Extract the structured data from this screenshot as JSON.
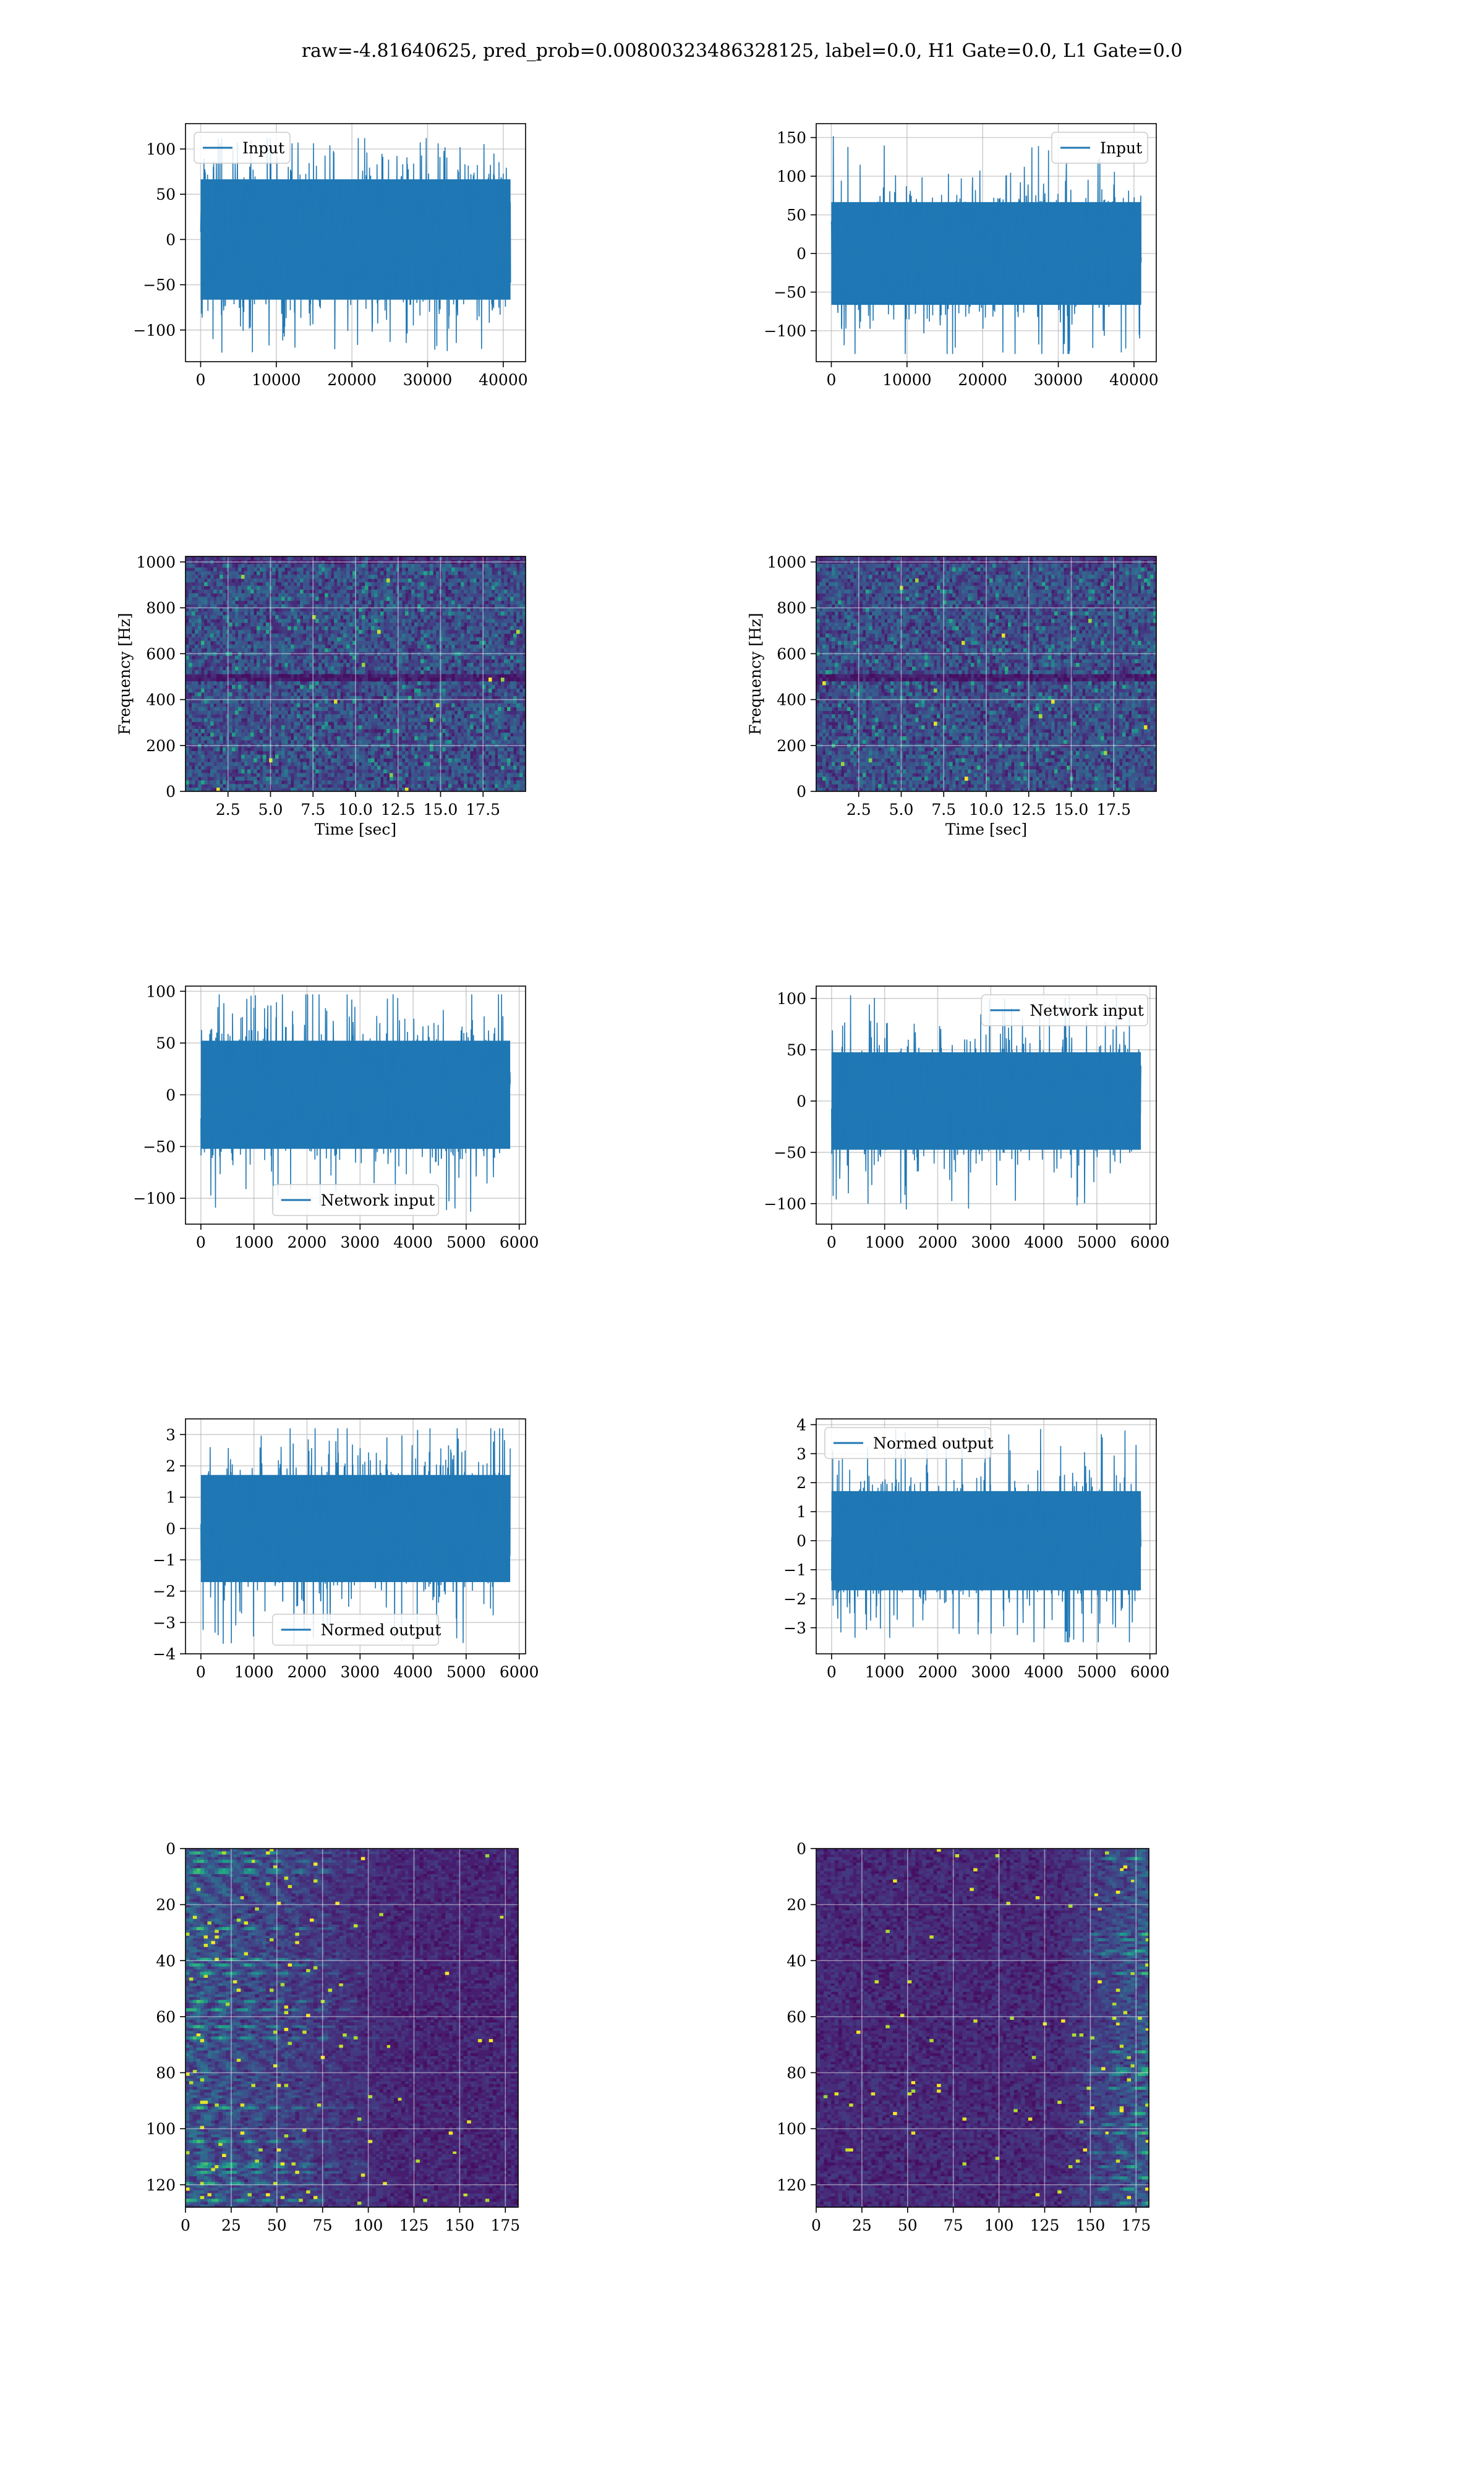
{
  "figure": {
    "title": "raw=-4.81640625, pred_prob=0.00800323486328125, label=0.0, H1 Gate=0.0, L1 Gate=0.0",
    "series_color": "#1f77b4"
  },
  "chart_data": [
    {
      "id": "r1c1",
      "type": "line",
      "title": "",
      "xlabel": "",
      "ylabel": "",
      "xlim": [
        -2000,
        42950
      ],
      "ylim": [
        -135,
        128
      ],
      "xticks": [
        0,
        10000,
        20000,
        30000,
        40000
      ],
      "xtick_labels": [
        "0",
        "10000",
        "20000",
        "30000",
        "40000"
      ],
      "yticks": [
        -100,
        -50,
        0,
        50,
        100
      ],
      "ytick_labels": [
        "−100",
        "−50",
        "0",
        "50",
        "100"
      ],
      "grid": true,
      "legend": {
        "entries": [
          "Input"
        ],
        "placement": "upper left"
      },
      "series": [
        {
          "name": "Input",
          "description": "dense noise-like strain time series",
          "n_points": 40960,
          "x_range": [
            0,
            40960
          ],
          "y_range": [
            -125,
            112
          ],
          "band_abs": 70
        }
      ]
    },
    {
      "id": "r1c2",
      "type": "line",
      "title": "",
      "xlabel": "",
      "ylabel": "",
      "xlim": [
        -2000,
        42950
      ],
      "ylim": [
        -140,
        168
      ],
      "xticks": [
        0,
        10000,
        20000,
        30000,
        40000
      ],
      "xtick_labels": [
        "0",
        "10000",
        "20000",
        "30000",
        "40000"
      ],
      "yticks": [
        -100,
        -50,
        0,
        50,
        100,
        150
      ],
      "ytick_labels": [
        "−100",
        "−50",
        "0",
        "50",
        "100",
        "150"
      ],
      "grid": true,
      "legend": {
        "entries": [
          "Input"
        ],
        "placement": "upper right"
      },
      "series": [
        {
          "name": "Input",
          "description": "dense noise-like strain time series",
          "n_points": 40960,
          "x_range": [
            0,
            40960
          ],
          "y_range": [
            -130,
            152
          ],
          "band_abs": 70
        }
      ]
    },
    {
      "id": "r2c1",
      "type": "heatmap",
      "title": "",
      "xlabel": "Time [sec]",
      "ylabel": "Frequency [Hz]",
      "xlim": [
        0,
        20
      ],
      "ylim": [
        0,
        1024
      ],
      "xticks": [
        2.5,
        5.0,
        7.5,
        10.0,
        12.5,
        15.0,
        17.5
      ],
      "xtick_labels": [
        "2.5",
        "5.0",
        "7.5",
        "10.0",
        "12.5",
        "15.0",
        "17.5"
      ],
      "yticks": [
        0,
        200,
        400,
        600,
        800,
        1000
      ],
      "ytick_labels": [
        "0",
        "200",
        "400",
        "600",
        "800",
        "1000"
      ],
      "grid": true,
      "colormap": "viridis",
      "description": "spectrogram of noise; dark band near 500 Hz; bright speckles near 12.5 s at 490 Hz and 17.5 s at 40 Hz"
    },
    {
      "id": "r2c2",
      "type": "heatmap",
      "title": "",
      "xlabel": "Time [sec]",
      "ylabel": "Frequency [Hz]",
      "xlim": [
        0,
        20
      ],
      "ylim": [
        0,
        1024
      ],
      "xticks": [
        2.5,
        5.0,
        7.5,
        10.0,
        12.5,
        15.0,
        17.5
      ],
      "xtick_labels": [
        "2.5",
        "5.0",
        "7.5",
        "10.0",
        "12.5",
        "15.0",
        "17.5"
      ],
      "yticks": [
        0,
        200,
        400,
        600,
        800,
        1000
      ],
      "ytick_labels": [
        "0",
        "200",
        "400",
        "600",
        "800",
        "1000"
      ],
      "grid": true,
      "colormap": "viridis",
      "description": "spectrogram of noise; dark band near 500 Hz; speckles at low frequencies near 15-17.5 s"
    },
    {
      "id": "r3c1",
      "type": "line",
      "title": "",
      "xlabel": "",
      "ylabel": "",
      "xlim": [
        -290,
        6120
      ],
      "ylim": [
        -125,
        105
      ],
      "xticks": [
        0,
        1000,
        2000,
        3000,
        4000,
        5000,
        6000
      ],
      "xtick_labels": [
        "0",
        "1000",
        "2000",
        "3000",
        "4000",
        "5000",
        "6000"
      ],
      "yticks": [
        -100,
        -50,
        0,
        50,
        100
      ],
      "ytick_labels": [
        "−100",
        "−50",
        "0",
        "50",
        "100"
      ],
      "grid": true,
      "legend": {
        "entries": [
          "Network input"
        ],
        "placement": "lower center"
      },
      "series": [
        {
          "name": "Network input",
          "description": "whitened/cropped strain",
          "n_points": 5830,
          "x_range": [
            0,
            5830
          ],
          "y_range": [
            -113,
            97
          ],
          "band_abs": 55
        }
      ]
    },
    {
      "id": "r3c2",
      "type": "line",
      "title": "",
      "xlabel": "",
      "ylabel": "",
      "xlim": [
        -290,
        6120
      ],
      "ylim": [
        -120,
        112
      ],
      "xticks": [
        0,
        1000,
        2000,
        3000,
        4000,
        5000,
        6000
      ],
      "xtick_labels": [
        "0",
        "1000",
        "2000",
        "3000",
        "4000",
        "5000",
        "6000"
      ],
      "yticks": [
        -100,
        -50,
        0,
        50,
        100
      ],
      "ytick_labels": [
        "−100",
        "−50",
        "0",
        "50",
        "100"
      ],
      "grid": true,
      "legend": {
        "entries": [
          "Network input"
        ],
        "placement": "upper right"
      },
      "series": [
        {
          "name": "Network input",
          "description": "whitened/cropped strain",
          "n_points": 5830,
          "x_range": [
            0,
            5830
          ],
          "y_range": [
            -110,
            103
          ],
          "band_abs": 50
        }
      ]
    },
    {
      "id": "r4c1",
      "type": "line",
      "title": "",
      "xlabel": "",
      "ylabel": "",
      "xlim": [
        -290,
        6120
      ],
      "ylim": [
        -4,
        3.5
      ],
      "xticks": [
        0,
        1000,
        2000,
        3000,
        4000,
        5000,
        6000
      ],
      "xtick_labels": [
        "0",
        "1000",
        "2000",
        "3000",
        "4000",
        "5000",
        "6000"
      ],
      "yticks": [
        -4,
        -3,
        -2,
        -1,
        0,
        1,
        2,
        3
      ],
      "ytick_labels": [
        "−4",
        "−3",
        "−2",
        "−1",
        "0",
        "1",
        "2",
        "3"
      ],
      "grid": true,
      "legend": {
        "entries": [
          "Normed output"
        ],
        "placement": "lower center"
      },
      "series": [
        {
          "name": "Normed output",
          "description": "normalized network output",
          "n_points": 5830,
          "x_range": [
            0,
            5830
          ],
          "y_range": [
            -3.7,
            3.2
          ],
          "band_abs": 1.8
        }
      ]
    },
    {
      "id": "r4c2",
      "type": "line",
      "title": "",
      "xlabel": "",
      "ylabel": "",
      "xlim": [
        -290,
        6120
      ],
      "ylim": [
        -3.9,
        4.2
      ],
      "xticks": [
        0,
        1000,
        2000,
        3000,
        4000,
        5000,
        6000
      ],
      "xtick_labels": [
        "0",
        "1000",
        "2000",
        "3000",
        "4000",
        "5000",
        "6000"
      ],
      "yticks": [
        -3,
        -2,
        -1,
        0,
        1,
        2,
        3,
        4
      ],
      "ytick_labels": [
        "−3",
        "−2",
        "−1",
        "0",
        "1",
        "2",
        "3",
        "4"
      ],
      "grid": true,
      "legend": {
        "entries": [
          "Normed output"
        ],
        "placement": "upper left"
      },
      "series": [
        {
          "name": "Normed output",
          "description": "normalized network output",
          "n_points": 5830,
          "x_range": [
            0,
            5830
          ],
          "y_range": [
            -3.5,
            3.9
          ],
          "band_abs": 1.8
        }
      ]
    },
    {
      "id": "r5c1",
      "type": "heatmap",
      "title": "",
      "xlabel": "",
      "ylabel": "",
      "xlim": [
        0,
        182
      ],
      "ylim": [
        128,
        0
      ],
      "xticks": [
        0,
        25,
        50,
        75,
        100,
        125,
        150,
        175
      ],
      "xtick_labels": [
        "0",
        "25",
        "50",
        "75",
        "100",
        "125",
        "150",
        "175"
      ],
      "yticks": [
        0,
        20,
        40,
        60,
        80,
        100,
        120
      ],
      "ytick_labels": [
        "0",
        "20",
        "40",
        "60",
        "80",
        "100",
        "120"
      ],
      "grid": true,
      "colormap": "viridis",
      "description": "128 feature channels x 182 time steps; activations concentrated at left (x<80), bright yellow spots near x=0-20"
    },
    {
      "id": "r5c2",
      "type": "heatmap",
      "title": "",
      "xlabel": "",
      "ylabel": "",
      "xlim": [
        0,
        182
      ],
      "ylim": [
        128,
        0
      ],
      "xticks": [
        0,
        25,
        50,
        75,
        100,
        125,
        150,
        175
      ],
      "xtick_labels": [
        "0",
        "25",
        "50",
        "75",
        "100",
        "125",
        "150",
        "175"
      ],
      "yticks": [
        0,
        20,
        40,
        60,
        80,
        100,
        120
      ],
      "ytick_labels": [
        "0",
        "20",
        "40",
        "60",
        "80",
        "100",
        "120"
      ],
      "grid": true,
      "colormap": "viridis",
      "description": "128 feature channels x 182 time steps; activations concentrated at right (x>150), bright yellow spots near x=175"
    }
  ]
}
